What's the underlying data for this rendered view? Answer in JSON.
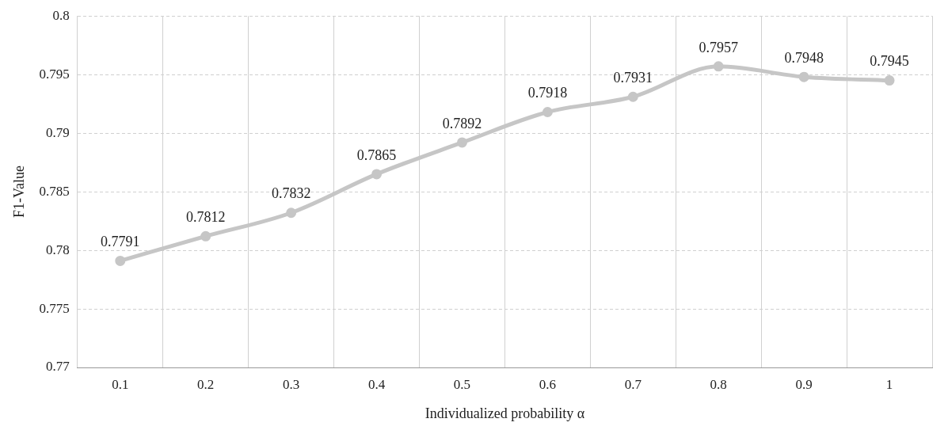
{
  "chart_data": {
    "type": "line",
    "xlabel": "Individualized probability α",
    "ylabel": "F1-Value",
    "categories": [
      "0.1",
      "0.2",
      "0.3",
      "0.4",
      "0.5",
      "0.6",
      "0.7",
      "0.8",
      "0.9",
      "1"
    ],
    "series": [
      {
        "color": "#c6c6c6",
        "values": [
          0.7791,
          0.7812,
          0.7832,
          0.7865,
          0.7892,
          0.7918,
          0.7931,
          0.7957,
          0.7948,
          0.7945
        ]
      }
    ],
    "ylim": [
      0.77,
      0.8
    ],
    "yticks": [
      0.77,
      0.775,
      0.78,
      0.785,
      0.79,
      0.795,
      0.8
    ],
    "grid": true,
    "data_labels": true,
    "marker": "circle",
    "line_style": "solid"
  }
}
